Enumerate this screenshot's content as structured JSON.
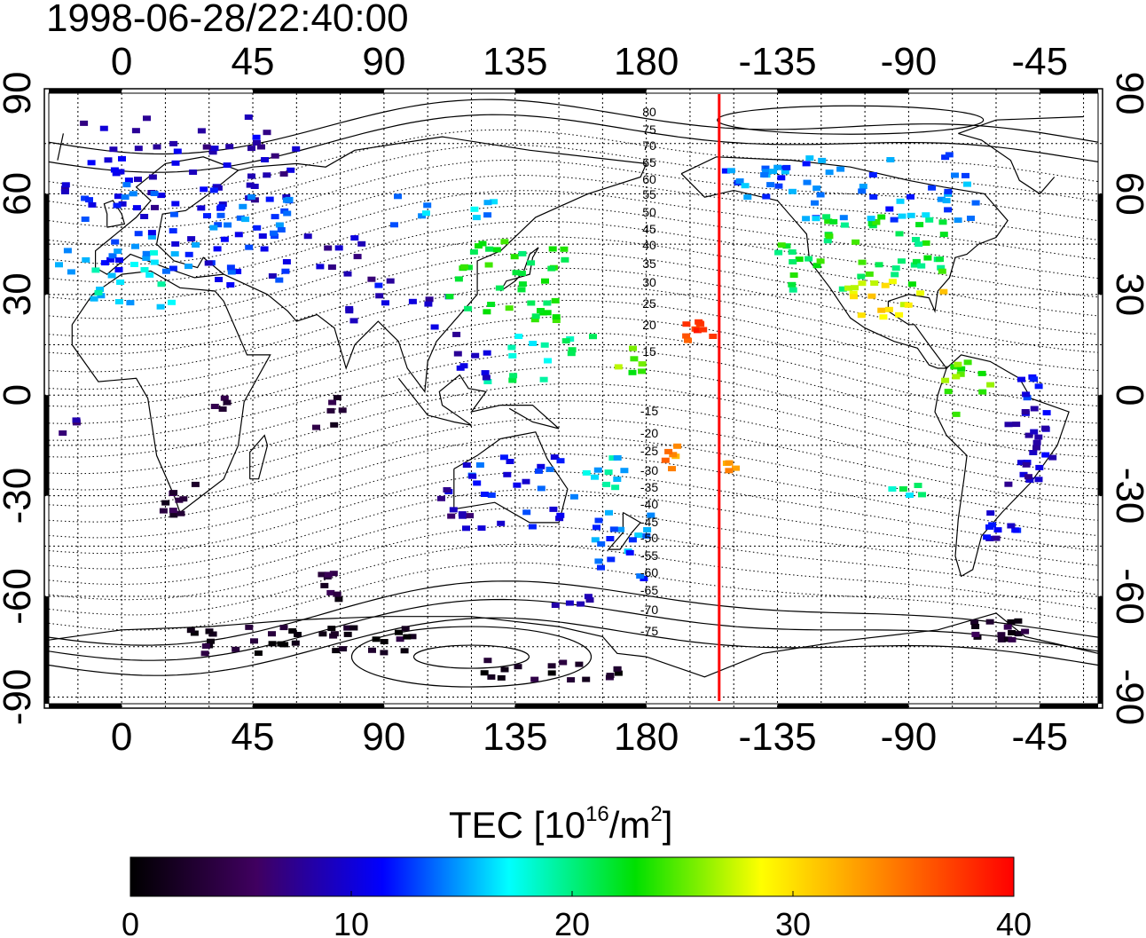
{
  "title": "1998-06-28/22:40:00",
  "colorbar": {
    "label_prefix": "TEC  [10",
    "label_exp": "16",
    "label_mid": "/m",
    "label_exp2": "2",
    "label_suffix": "]",
    "ticks": [
      "0",
      "10",
      "20",
      "30",
      "40"
    ],
    "vmin": 0,
    "vmax": 40,
    "stops": [
      "#000000",
      "#400060",
      "#0000ff",
      "#00ffff",
      "#00e000",
      "#ffff00",
      "#ff8000",
      "#ff0000"
    ]
  },
  "map": {
    "lon_ticks_top": [
      "0",
      "45",
      "90",
      "135",
      "180",
      "-135",
      "-90",
      "-45"
    ],
    "lon_ticks_bottom": [
      "0",
      "45",
      "90",
      "135",
      "180",
      "-135",
      "-90",
      "-45"
    ],
    "lat_ticks_left": [
      "90",
      "60",
      "30",
      "0",
      "-30",
      "-60",
      "-90"
    ],
    "lat_ticks_right": [
      "90",
      "60",
      "30",
      "0",
      "-30",
      "-60",
      "-90"
    ],
    "lon_start": -25,
    "lon_end": 335,
    "lat_start": 90,
    "lat_end": -92,
    "terminator_lon": 205,
    "terminator_color": "#ff0000",
    "contour_labels": [
      "80",
      "75",
      "70",
      "65",
      "60",
      "55",
      "50",
      "45",
      "40",
      "35",
      "30",
      "25",
      "20",
      "15",
      "-15",
      "-20",
      "-25",
      "-30",
      "-35",
      "-40",
      "-45",
      "-50",
      "-55",
      "-60",
      "-65",
      "-70",
      "-75"
    ]
  },
  "chart_data": {
    "type": "scatter",
    "title": "1998-06-28/22:40:00",
    "xlabel": "",
    "ylabel": "",
    "xlim": [
      -25,
      335
    ],
    "ylim": [
      -92,
      90
    ],
    "value_label": "TEC  [10^16/m^2]",
    "value_range": [
      0,
      40
    ],
    "clusters": [
      {
        "lon": 20,
        "lat": 68,
        "w": 40,
        "h": 15,
        "value": 9,
        "n": 60
      },
      {
        "lon": 18,
        "lat": 50,
        "w": 40,
        "h": 14,
        "value": 13,
        "n": 60
      },
      {
        "lon": 5,
        "lat": 36,
        "w": 15,
        "h": 10,
        "value": 17,
        "n": 20
      },
      {
        "lon": 38,
        "lat": 40,
        "w": 20,
        "h": 10,
        "value": 11,
        "n": 14
      },
      {
        "lon": 75,
        "lat": 40,
        "w": 12,
        "h": 8,
        "value": 9,
        "n": 10
      },
      {
        "lon": 95,
        "lat": 28,
        "w": 18,
        "h": 8,
        "value": 10,
        "n": 12
      },
      {
        "lon": 132,
        "lat": 34,
        "w": 20,
        "h": 12,
        "value": 22,
        "n": 40
      },
      {
        "lon": 110,
        "lat": 55,
        "w": 20,
        "h": 5,
        "value": 15,
        "n": 10
      },
      {
        "lon": 145,
        "lat": 12,
        "w": 20,
        "h": 8,
        "value": 19,
        "n": 15
      },
      {
        "lon": 120,
        "lat": 12,
        "w": 6,
        "h": 8,
        "value": 10,
        "n": 8
      },
      {
        "lon": 140,
        "lat": -28,
        "w": 22,
        "h": 12,
        "value": 12,
        "n": 25
      },
      {
        "lon": 115,
        "lat": -30,
        "w": 6,
        "h": 10,
        "value": 8,
        "n": 10
      },
      {
        "lon": 172,
        "lat": -45,
        "w": 10,
        "h": 10,
        "value": 14,
        "n": 20
      },
      {
        "lon": 165,
        "lat": -24,
        "w": 8,
        "h": 6,
        "value": 17,
        "n": 10
      },
      {
        "lon": 198,
        "lat": 20,
        "w": 5,
        "h": 4,
        "value": 37,
        "n": 10
      },
      {
        "lon": 188,
        "lat": -18,
        "w": 3,
        "h": 4,
        "value": 34,
        "n": 6
      },
      {
        "lon": 210,
        "lat": -22,
        "w": 3,
        "h": 2,
        "value": 33,
        "n": 4
      },
      {
        "lon": 175,
        "lat": 10,
        "w": 6,
        "h": 6,
        "value": 25,
        "n": 6
      },
      {
        "lon": 255,
        "lat": 42,
        "w": 30,
        "h": 12,
        "value": 22,
        "n": 50
      },
      {
        "lon": 260,
        "lat": 62,
        "w": 35,
        "h": 10,
        "value": 14,
        "n": 45
      },
      {
        "lon": 265,
        "lat": 28,
        "w": 18,
        "h": 6,
        "value": 29,
        "n": 18
      },
      {
        "lon": 215,
        "lat": 64,
        "w": 15,
        "h": 5,
        "value": 14,
        "n": 15
      },
      {
        "lon": 290,
        "lat": 2,
        "w": 8,
        "h": 8,
        "value": 25,
        "n": 12
      },
      {
        "lon": 312,
        "lat": -15,
        "w": 8,
        "h": 12,
        "value": 9,
        "n": 25
      },
      {
        "lon": 302,
        "lat": -38,
        "w": 6,
        "h": 6,
        "value": 10,
        "n": 10
      },
      {
        "lon": 300,
        "lat": -70,
        "w": 10,
        "h": 3,
        "value": 3,
        "n": 15
      },
      {
        "lon": 60,
        "lat": -73,
        "w": 40,
        "h": 4,
        "value": 2,
        "n": 40
      },
      {
        "lon": 148,
        "lat": -82,
        "w": 25,
        "h": 3,
        "value": 2,
        "n": 18
      },
      {
        "lon": 20,
        "lat": -32,
        "w": 6,
        "h": 6,
        "value": 4,
        "n": 10
      },
      {
        "lon": 70,
        "lat": -57,
        "w": 6,
        "h": 4,
        "value": 3,
        "n": 8
      },
      {
        "lon": 72,
        "lat": -5,
        "w": 6,
        "h": 6,
        "value": 3,
        "n": 6
      },
      {
        "lon": 34,
        "lat": -2,
        "w": 3,
        "h": 4,
        "value": 3,
        "n": 4
      },
      {
        "lon": -18,
        "lat": -10,
        "w": 3,
        "h": 3,
        "value": 7,
        "n": 4
      },
      {
        "lon": 270,
        "lat": -28,
        "w": 6,
        "h": 2,
        "value": 19,
        "n": 5
      },
      {
        "lon": 310,
        "lat": 5,
        "w": 6,
        "h": 6,
        "value": 12,
        "n": 6
      },
      {
        "lon": 155,
        "lat": -62,
        "w": 8,
        "h": 2,
        "value": 10,
        "n": 5
      }
    ]
  }
}
